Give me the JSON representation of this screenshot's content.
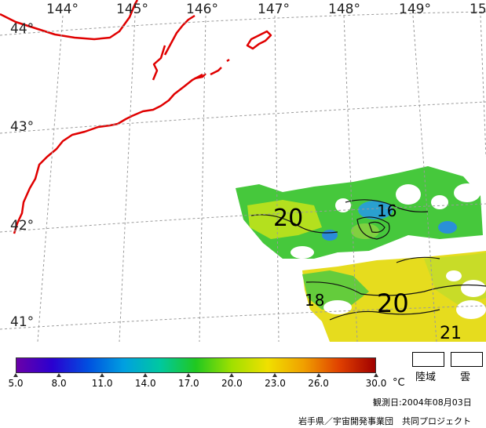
{
  "map": {
    "lon_labels": [
      "144°",
      "145°",
      "146°",
      "147°",
      "148°",
      "149°",
      "15"
    ],
    "lat_labels": [
      "44°",
      "43°",
      "42°",
      "41°"
    ],
    "contour_labels": [
      "20",
      "16",
      "20",
      "18",
      "21"
    ],
    "coastline_color": "#e00000",
    "grid_color": "#9a9a9a"
  },
  "colorbar": {
    "tick_labels": [
      "5.0",
      "8.0",
      "11.0",
      "14.0",
      "17.0",
      "20.0",
      "23.0",
      "26.0",
      "30.0"
    ],
    "unit": "°C",
    "colors": [
      "#6a00a8",
      "#2a00d0",
      "#0050e0",
      "#00a0e0",
      "#00c8a0",
      "#20c820",
      "#a0e000",
      "#f0e000",
      "#f0a000",
      "#e04000",
      "#a00000"
    ]
  },
  "legend": {
    "land_label": "陸域",
    "cloud_label": "雲"
  },
  "footer": {
    "observation_date": "観測日:2004年08月03日",
    "credit": "岩手県／宇宙開発事業団　共同プロジェクト"
  }
}
